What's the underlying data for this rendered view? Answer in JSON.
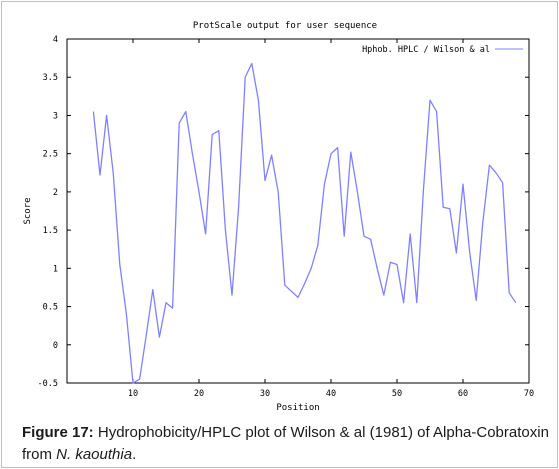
{
  "chart_data": {
    "type": "line",
    "title": "ProtScale output for user sequence",
    "xlabel": "Position",
    "ylabel": "Score",
    "xlim": [
      0,
      70
    ],
    "ylim": [
      -0.5,
      4
    ],
    "x_ticks": [
      10,
      20,
      30,
      40,
      50,
      60,
      70
    ],
    "y_ticks": [
      -0.5,
      0,
      0.5,
      1,
      1.5,
      2,
      2.5,
      3,
      3.5,
      4
    ],
    "grid": false,
    "legend": "top-right",
    "series": [
      {
        "name": "Hphob. HPLC / Wilson & al",
        "color": "#8080ff",
        "x": [
          4,
          5,
          6,
          7,
          8,
          9,
          10,
          11,
          12,
          13,
          14,
          15,
          16,
          17,
          18,
          19,
          20,
          21,
          22,
          23,
          24,
          25,
          26,
          27,
          28,
          29,
          30,
          31,
          32,
          33,
          34,
          35,
          36,
          37,
          38,
          39,
          40,
          41,
          42,
          43,
          44,
          45,
          46,
          47,
          48,
          49,
          50,
          51,
          52,
          53,
          54,
          55,
          56,
          57,
          58,
          59,
          60,
          61,
          62,
          63,
          64,
          65,
          66,
          67,
          68
        ],
        "values": [
          3.05,
          2.22,
          3.0,
          2.25,
          1.05,
          0.4,
          -0.5,
          -0.45,
          0.12,
          0.72,
          0.1,
          0.55,
          0.48,
          2.9,
          3.05,
          2.5,
          2.0,
          1.45,
          2.75,
          2.8,
          1.5,
          0.65,
          1.8,
          3.5,
          3.68,
          3.2,
          2.15,
          2.48,
          2.0,
          0.78,
          0.7,
          0.62,
          0.8,
          1.0,
          1.3,
          2.1,
          2.5,
          2.58,
          1.42,
          2.52,
          2.0,
          1.42,
          1.38,
          1.0,
          0.65,
          1.08,
          1.05,
          0.55,
          1.45,
          0.55,
          2.02,
          3.2,
          3.05,
          1.8,
          1.78,
          1.2,
          2.1,
          1.22,
          0.58,
          1.6,
          2.35,
          2.25,
          2.12,
          0.68,
          0.55
        ]
      }
    ]
  },
  "caption": {
    "label": "Figure 17:",
    "text": " Hydrophobicity/HPLC plot of Wilson & al (1981) of Alpha-Cobratoxin from ",
    "species": "N. kaouthia",
    "end": "."
  }
}
